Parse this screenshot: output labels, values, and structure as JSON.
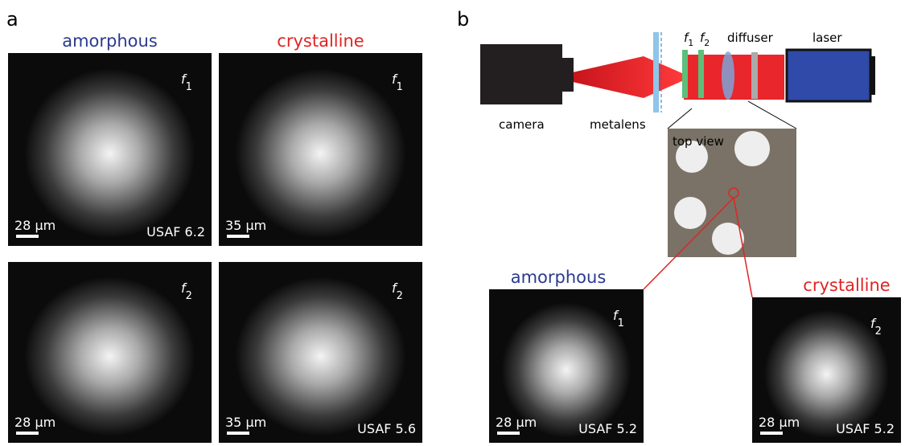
{
  "panel_a": {
    "label": "a",
    "columns": [
      {
        "title": "amorphous",
        "images": [
          {
            "focus_symbol": "f",
            "focus_index": "1",
            "scale_bar": "28 μm",
            "target": "USAF 6.2"
          },
          {
            "focus_symbol": "f",
            "focus_index": "2",
            "scale_bar": "28 μm"
          }
        ]
      },
      {
        "title": "crystalline",
        "images": [
          {
            "focus_symbol": "f",
            "focus_index": "1",
            "scale_bar": "35 μm"
          },
          {
            "focus_symbol": "f",
            "focus_index": "2",
            "scale_bar": "35 μm",
            "target": "USAF 5.6"
          }
        ]
      }
    ]
  },
  "panel_b": {
    "label": "b",
    "setup": {
      "focus_symbol": "f",
      "f1_index": "1",
      "f2_index": "2",
      "diffuser": "diffuser",
      "laser": "laser",
      "camera": "camera",
      "metalens": "metalens",
      "top_view": "top view"
    },
    "images": [
      {
        "title": "amorphous",
        "focus_symbol": "f",
        "focus_index": "1",
        "scale_bar": "28 μm",
        "target": "USAF 5.2"
      },
      {
        "title": "crystalline",
        "focus_symbol": "f",
        "focus_index": "2",
        "scale_bar": "28 μm",
        "target": "USAF 5.2"
      }
    ]
  }
}
